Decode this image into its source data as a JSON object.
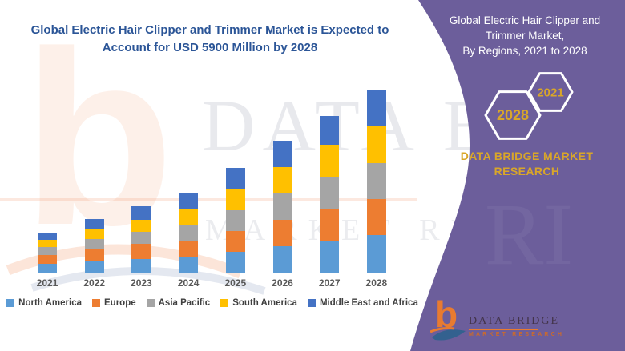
{
  "main_title": {
    "line1": "Global Electric Hair Clipper and Trimmer Market is Expected to",
    "line2": "Account for USD 5900 Million by 2028"
  },
  "side_panel": {
    "title_line1": "Global Electric Hair Clipper and Trimmer Market,",
    "title_line2": "By Regions, 2021 to 2028",
    "hexagon_left_year": "2028",
    "hexagon_right_year": "2021",
    "brand": "DATA BRIDGE MARKET RESEARCH"
  },
  "footer_logo": {
    "name": "DATA BRIDGE",
    "subtitle": "MARKET RESEARCH"
  },
  "watermark": {
    "line1": "DATA BRIDGE",
    "line2": "MARKET RESEARCH"
  },
  "colors": {
    "title_blue": "#2B5597",
    "panel_purple": "#6C5E9B",
    "gold": "#D9A629",
    "axis_gray": "#D9D9D9"
  },
  "chart_data": {
    "type": "bar",
    "stacked": true,
    "title": "Global Electric Hair Clipper and Trimmer Market is Expected to Account for USD 5900 Million by 2028",
    "xlabel": "",
    "ylabel": "",
    "unit": "USD Million",
    "grid": false,
    "legend_position": "bottom",
    "ylim": [
      0,
      5900
    ],
    "categories": [
      "2021",
      "2022",
      "2023",
      "2024",
      "2025",
      "2026",
      "2027",
      "2028"
    ],
    "series": [
      {
        "name": "North America",
        "color": "#5B9BD5",
        "values": [
          280,
          390,
          440,
          510,
          680,
          850,
          1000,
          1220
        ]
      },
      {
        "name": "Europe",
        "color": "#ED7D31",
        "values": [
          280,
          390,
          480,
          510,
          670,
          850,
          1030,
          1140
        ]
      },
      {
        "name": "Asia Pacific",
        "color": "#A5A5A5",
        "values": [
          270,
          300,
          390,
          510,
          670,
          850,
          1030,
          1170
        ]
      },
      {
        "name": "South America",
        "color": "#FFC000",
        "values": [
          230,
          300,
          400,
          510,
          680,
          850,
          1050,
          1180
        ]
      },
      {
        "name": "Middle East and Africa",
        "color": "#4472C4",
        "values": [
          230,
          340,
          430,
          520,
          670,
          840,
          930,
          1190
        ]
      }
    ],
    "totals": [
      1290,
      1720,
      2140,
      2560,
      3370,
      4240,
      5040,
      5900
    ]
  }
}
